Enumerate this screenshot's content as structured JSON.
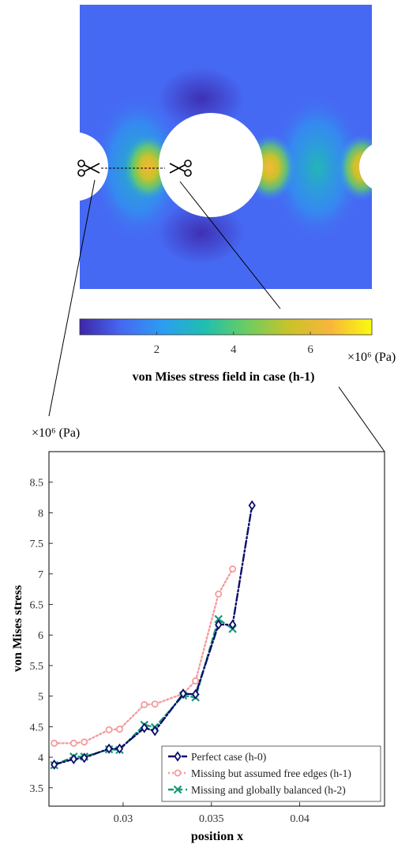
{
  "stress_field": {
    "colorbar": {
      "ticks": [
        "2",
        "4",
        "6"
      ],
      "tick_values": [
        2,
        4,
        6
      ],
      "range": [
        0,
        7.6
      ],
      "colors": [
        "#3e26a8",
        "#4669f3",
        "#2b9ef0",
        "#1ebfb0",
        "#6bcd61",
        "#c8c32a",
        "#f9b53b",
        "#f9fb0e"
      ],
      "exponent_label": "×10⁶ (Pa)"
    },
    "caption": "von Mises stress field in case (h-1)"
  },
  "chart_data": {
    "type": "line",
    "xlabel": "position x",
    "ylabel": "von Mises stress",
    "y_exponent_label": "×10⁶ (Pa)",
    "xlim": [
      0.0258,
      0.0448
    ],
    "ylim": [
      3.2,
      9.0
    ],
    "x_ticks": [
      0.03,
      0.035,
      0.04
    ],
    "x_tick_labels": [
      "0.03",
      "0.035",
      "0.04"
    ],
    "y_ticks": [
      3.5,
      4,
      4.5,
      5,
      5.5,
      6,
      6.5,
      7,
      7.5,
      8,
      8.5
    ],
    "y_tick_labels": [
      "3.5",
      "4",
      "4.5",
      "5",
      "5.5",
      "6",
      "6.5",
      "7",
      "7.5",
      "8",
      "8.5"
    ],
    "grid": false,
    "legend_position": "bottom-right",
    "series": [
      {
        "name": "Perfect case (h-0)",
        "color": "#0b0e69",
        "line": "dashdot",
        "marker": "diamond",
        "x": [
          0.0261,
          0.0272,
          0.0278,
          0.0292,
          0.0298,
          0.0312,
          0.0318,
          0.0334,
          0.0341,
          0.0354,
          0.0362,
          0.0373
        ],
        "y": [
          3.88,
          3.97,
          3.99,
          4.14,
          4.14,
          4.48,
          4.43,
          5.04,
          5.03,
          6.17,
          6.17,
          8.12
        ]
      },
      {
        "name": "Missing but assumed free edges (h-1)",
        "color": "#f59b9b",
        "line": "dotted",
        "marker": "circle",
        "x": [
          0.0261,
          0.0272,
          0.0278,
          0.0292,
          0.0298,
          0.0312,
          0.0318,
          0.0334,
          0.0341,
          0.0354,
          0.0362
        ],
        "y": [
          4.23,
          4.23,
          4.25,
          4.45,
          4.46,
          4.86,
          4.87,
          5.04,
          5.25,
          6.67,
          7.08
        ]
      },
      {
        "name": "Missing and globally balanced (h-2)",
        "color": "#139977",
        "line": "dashed",
        "marker": "x",
        "x": [
          0.0261,
          0.0272,
          0.0278,
          0.0292,
          0.0298,
          0.0312,
          0.0318,
          0.0334,
          0.0341,
          0.0354,
          0.0362
        ],
        "y": [
          3.87,
          4.01,
          4.01,
          4.13,
          4.12,
          4.53,
          4.49,
          5.01,
          4.98,
          6.26,
          6.1
        ]
      }
    ]
  }
}
